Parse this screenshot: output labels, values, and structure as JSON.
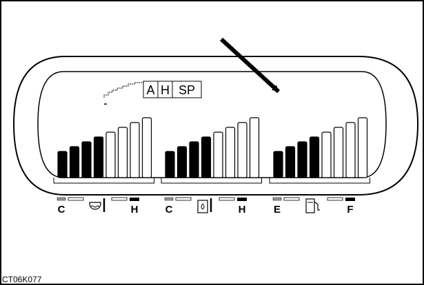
{
  "figure_id": "CT06K077",
  "mode_indicator": {
    "labels": [
      "A",
      "H",
      "SP"
    ],
    "level_marker": "-"
  },
  "gauges": [
    {
      "name": "coolant-temperature",
      "low_label": "C",
      "high_label": "H",
      "icon": "coolant-temperature-icon",
      "segments_total": 8,
      "segments_lit": 4
    },
    {
      "name": "hydraulic-oil-temperature",
      "low_label": "C",
      "high_label": "H",
      "icon": "hydraulic-oil-temperature-icon",
      "segments_total": 8,
      "segments_lit": 4
    },
    {
      "name": "fuel-level",
      "low_label": "E",
      "high_label": "F",
      "icon": "fuel-pump-icon",
      "segments_total": 8,
      "segments_lit": 4
    }
  ],
  "pointer": "arrow-pointing-at-display"
}
